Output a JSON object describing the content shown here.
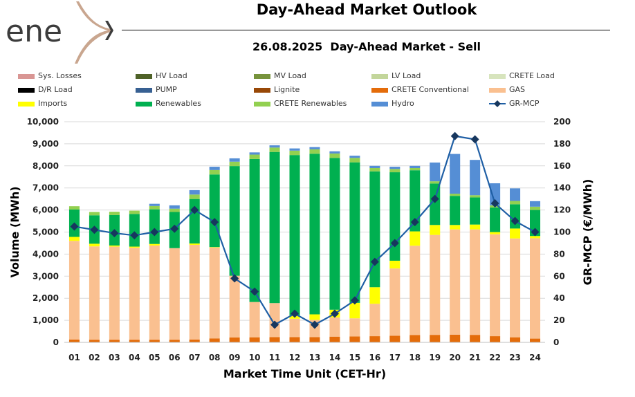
{
  "logo": {
    "text": "ene",
    "mark": "x-mark-icon",
    "color": "#3c3c3c",
    "accent": "#c9a68f"
  },
  "header": {
    "title": "Day-Ahead Market Outlook",
    "subtitle": "26.08.2025  Day-Ahead Market - Sell"
  },
  "legend": [
    {
      "label": "Sys. Losses",
      "color": "#d99694",
      "kind": "box"
    },
    {
      "label": "HV Load",
      "color": "#4f6228",
      "kind": "box"
    },
    {
      "label": "MV Load",
      "color": "#77933c",
      "kind": "box"
    },
    {
      "label": "LV Load",
      "color": "#c3d69b",
      "kind": "box"
    },
    {
      "label": "CRETE Load",
      "color": "#d7e4bd",
      "kind": "box"
    },
    {
      "label": "D/R Load",
      "color": "#000000",
      "kind": "box"
    },
    {
      "label": "PUMP",
      "color": "#376092",
      "kind": "box"
    },
    {
      "label": "Lignite",
      "color": "#984807",
      "kind": "box"
    },
    {
      "label": "CRETE Conventional",
      "color": "#e46c0a",
      "kind": "box"
    },
    {
      "label": "GAS",
      "color": "#fac090",
      "kind": "box"
    },
    {
      "label": "Imports",
      "color": "#ffff00",
      "kind": "box"
    },
    {
      "label": "Renewables",
      "color": "#00b050",
      "kind": "box"
    },
    {
      "label": "CRETE Renewables",
      "color": "#92d050",
      "kind": "box"
    },
    {
      "label": "Hydro",
      "color": "#558ed5",
      "kind": "box"
    },
    {
      "label": "GR-MCP",
      "color": "#1f5fa5",
      "kind": "line"
    }
  ],
  "chart_data": {
    "type": "bar",
    "stacked": true,
    "xlabel": "Market Time Unit (CET-Hr)",
    "ylabel": "Volume (MWh)",
    "y2label": "GR-MCP (€/MWh)",
    "ylim": [
      0,
      10000
    ],
    "y2lim": [
      0,
      200
    ],
    "grid": true,
    "categories": [
      "01",
      "02",
      "03",
      "04",
      "05",
      "06",
      "07",
      "08",
      "09",
      "10",
      "11",
      "12",
      "13",
      "14",
      "15",
      "16",
      "17",
      "18",
      "19",
      "20",
      "21",
      "22",
      "23",
      "24"
    ],
    "yticks": [
      "0",
      "1,000",
      "2,000",
      "3,000",
      "4,000",
      "5,000",
      "6,000",
      "7,000",
      "8,000",
      "9,000",
      "10,000"
    ],
    "y2ticks": [
      "0",
      "20",
      "40",
      "60",
      "80",
      "100",
      "120",
      "140",
      "160",
      "180",
      "200"
    ],
    "series": [
      {
        "name": "CRETE Conventional",
        "color": "#e46c0a",
        "values": [
          130,
          120,
          120,
          120,
          120,
          120,
          130,
          180,
          220,
          230,
          240,
          240,
          240,
          260,
          270,
          280,
          300,
          330,
          340,
          350,
          340,
          280,
          230,
          170
        ]
      },
      {
        "name": "GAS",
        "color": "#fac090",
        "values": [
          4470,
          4230,
          4220,
          4170,
          4270,
          4150,
          4290,
          4120,
          2800,
          1600,
          1540,
          830,
          780,
          870,
          820,
          1470,
          3050,
          4050,
          4530,
          4770,
          4780,
          4620,
          4480,
          4550
        ]
      },
      {
        "name": "Imports",
        "color": "#ffff00",
        "values": [
          180,
          120,
          50,
          50,
          70,
          0,
          60,
          20,
          0,
          0,
          0,
          150,
          250,
          350,
          700,
          750,
          350,
          650,
          450,
          200,
          220,
          100,
          450,
          100
        ]
      },
      {
        "name": "Renewables",
        "color": "#00b050",
        "values": [
          1240,
          1290,
          1380,
          1480,
          1570,
          1640,
          2020,
          3290,
          4970,
          6480,
          6850,
          7270,
          7280,
          6880,
          6370,
          5250,
          4010,
          2770,
          1880,
          1320,
          1230,
          1110,
          1100,
          1180
        ]
      },
      {
        "name": "CRETE Renewables",
        "color": "#92d050",
        "values": [
          150,
          150,
          150,
          150,
          150,
          150,
          200,
          200,
          200,
          200,
          200,
          200,
          200,
          200,
          200,
          150,
          150,
          100,
          100,
          100,
          100,
          100,
          150,
          150
        ]
      },
      {
        "name": "Hydro",
        "color": "#558ed5",
        "values": [
          0,
          0,
          0,
          0,
          100,
          150,
          200,
          150,
          150,
          100,
          100,
          100,
          100,
          100,
          100,
          100,
          100,
          100,
          850,
          1800,
          1600,
          1000,
          570,
          250
        ]
      }
    ],
    "line": {
      "name": "GR-MCP",
      "color": "#1f5fa5",
      "marker_color": "#17375e",
      "axis": "secondary",
      "values": [
        105,
        102,
        99,
        97,
        100,
        103,
        120,
        109,
        58,
        46,
        16,
        26,
        16,
        26,
        38,
        73,
        90,
        109,
        130,
        187,
        184,
        126,
        110,
        100
      ]
    }
  }
}
